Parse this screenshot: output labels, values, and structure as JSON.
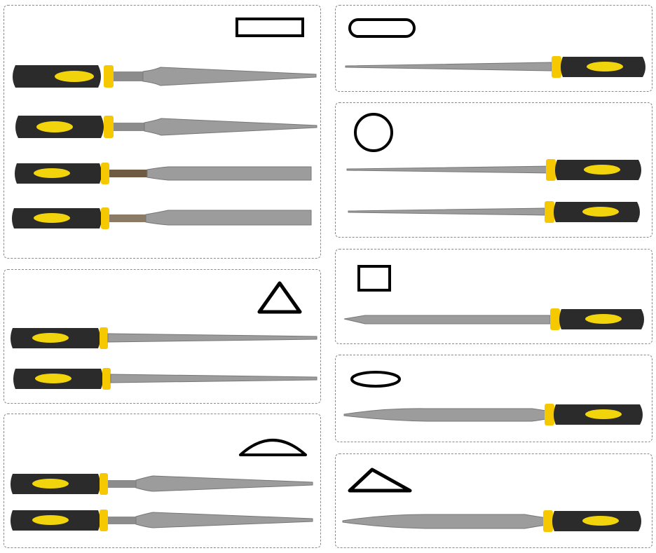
{
  "colors": {
    "handle": "#2b2b2b",
    "grip": "#f2d40c",
    "ferrule": "#f5c800",
    "blade": "#9c9c9c",
    "blade_dark": "#7a7a7a",
    "shape_stroke": "#000000",
    "panel_border": "#8a8a8a"
  },
  "panels": [
    {
      "id": "flat",
      "profile": "rectangle",
      "file_count": 4
    },
    {
      "id": "three-square",
      "profile": "triangle",
      "file_count": 2
    },
    {
      "id": "half-round",
      "profile": "half-round",
      "file_count": 2
    },
    {
      "id": "equaling",
      "profile": "rounded-rectangle",
      "file_count": 1
    },
    {
      "id": "round",
      "profile": "circle",
      "file_count": 2
    },
    {
      "id": "square",
      "profile": "square",
      "file_count": 1
    },
    {
      "id": "oval",
      "profile": "ellipse",
      "file_count": 1
    },
    {
      "id": "knife",
      "profile": "flat-triangle",
      "file_count": 1
    }
  ]
}
